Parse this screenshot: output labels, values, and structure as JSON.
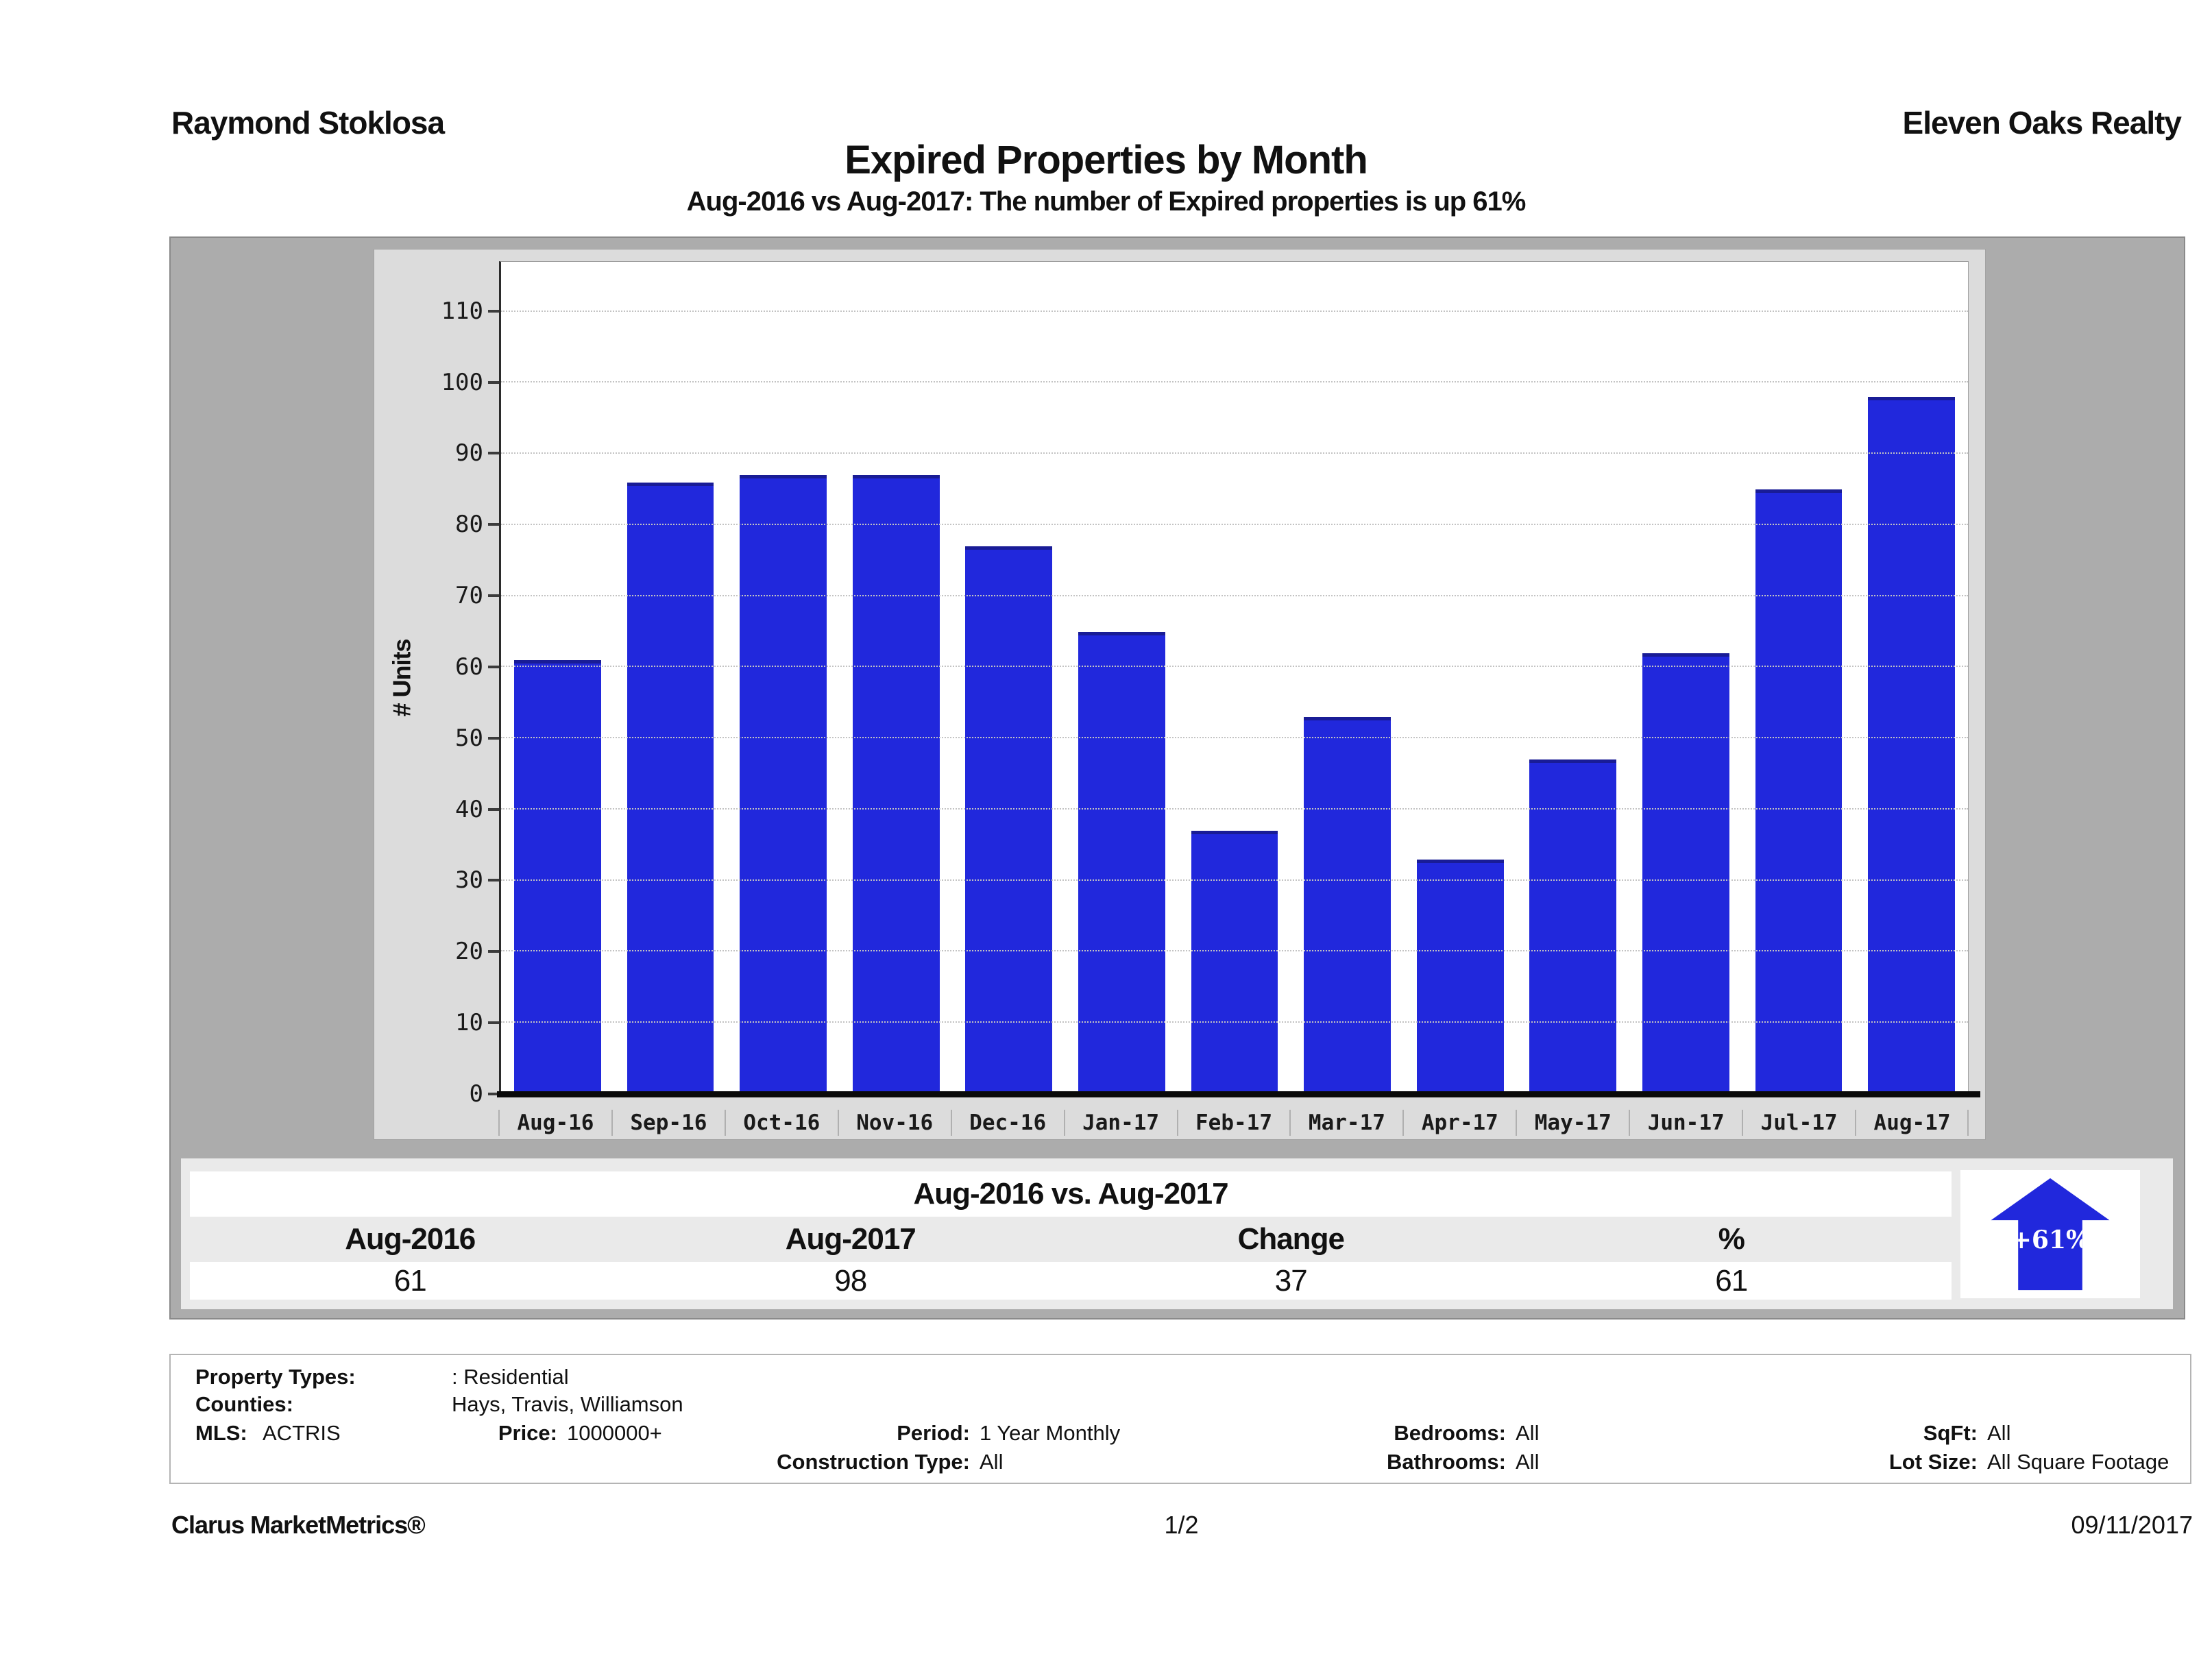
{
  "header": {
    "agent": "Raymond Stoklosa",
    "company": "Eleven Oaks Realty",
    "title": "Expired Properties by Month",
    "subtitle": "Aug-2016 vs Aug-2017: The number of Expired  properties is up 61%"
  },
  "chart_data": {
    "type": "bar",
    "title": "Expired Properties by Month",
    "categories": [
      "Aug-16",
      "Sep-16",
      "Oct-16",
      "Nov-16",
      "Dec-16",
      "Jan-17",
      "Feb-17",
      "Mar-17",
      "Apr-17",
      "May-17",
      "Jun-17",
      "Jul-17",
      "Aug-17"
    ],
    "values": [
      61,
      86,
      87,
      87,
      77,
      65,
      37,
      53,
      33,
      47,
      62,
      85,
      98
    ],
    "xlabel": "",
    "ylabel": "# Units",
    "yticks": [
      0,
      10,
      20,
      30,
      40,
      50,
      60,
      70,
      80,
      90,
      100,
      110
    ],
    "ylim": [
      0,
      117
    ],
    "grid": true,
    "legend_position": "none",
    "bar_color": "#2128dc"
  },
  "comparison": {
    "title": "Aug-2016 vs. Aug-2017",
    "columns": [
      "Aug-2016",
      "Aug-2017",
      "Change",
      "%"
    ],
    "values": [
      "61",
      "98",
      "37",
      "61"
    ],
    "badge": "+61%"
  },
  "filters": {
    "property_types_label": "Property Types:",
    "property_types_value": ": Residential",
    "counties_label": "Counties:",
    "counties_value": "Hays, Travis, Williamson",
    "mls_label": "MLS:",
    "mls_value": "ACTRIS",
    "price_label": "Price:",
    "price_value": "1000000+",
    "period_label": "Period:",
    "period_value": "1 Year Monthly",
    "bedrooms_label": "Bedrooms:",
    "bedrooms_value": "All",
    "sqft_label": "SqFt:",
    "sqft_value": "All",
    "construction_label": "Construction Type:",
    "construction_value": "All",
    "bathrooms_label": "Bathrooms:",
    "bathrooms_value": "All",
    "lotsize_label": "Lot Size:",
    "lotsize_value": "All Square Footage"
  },
  "footer": {
    "brand": "Clarus MarketMetrics®",
    "page": "1/2",
    "date": "09/11/2017"
  }
}
